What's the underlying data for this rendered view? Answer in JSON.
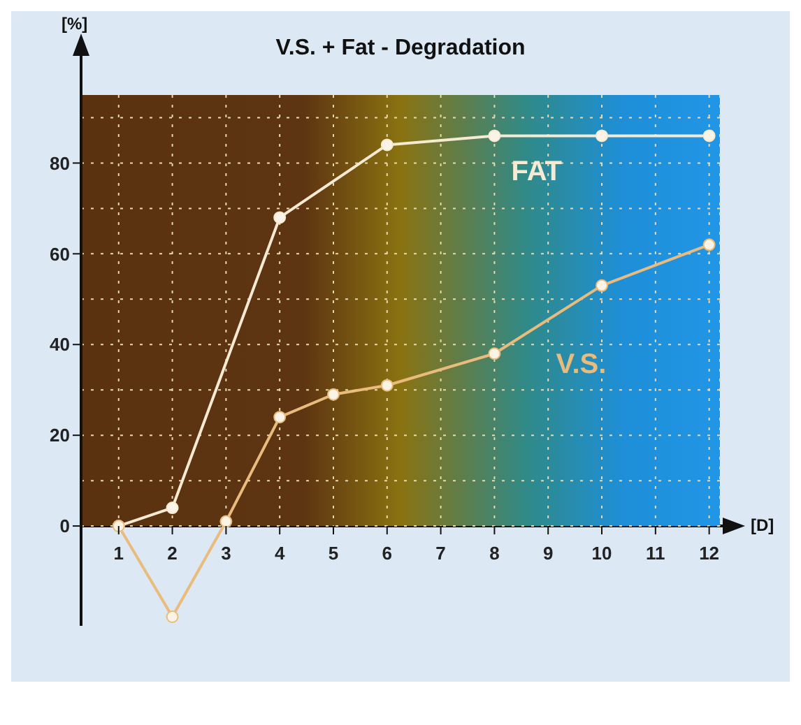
{
  "chart_data": {
    "type": "line",
    "title": "V.S. + Fat - Degradation",
    "xlabel": "[D]",
    "ylabel": "[%]",
    "xlim": [
      0.3,
      12.2
    ],
    "xticks": [
      1,
      2,
      3,
      4,
      5,
      6,
      7,
      8,
      9,
      10,
      11,
      12
    ],
    "ylim": [
      -22,
      95
    ],
    "yticks": [
      0,
      20,
      40,
      60,
      80
    ],
    "series": [
      {
        "name": "FAT",
        "color": "#f6ead2",
        "x": [
          1,
          2,
          4,
          6,
          8,
          10,
          12
        ],
        "values": [
          0,
          4,
          68,
          84,
          86,
          86,
          86
        ]
      },
      {
        "name": "V.S.",
        "color": "#e9bb7c",
        "x": [
          1,
          2,
          3,
          4,
          5,
          6,
          8,
          10,
          12
        ],
        "values": [
          0,
          -20,
          1,
          24,
          29,
          31,
          38,
          53,
          62
        ]
      }
    ],
    "bands": [
      {
        "axis": "y",
        "from": 0,
        "to": 95
      }
    ],
    "grid": true,
    "legend": false,
    "marker": "circle",
    "line_style": "solid"
  }
}
